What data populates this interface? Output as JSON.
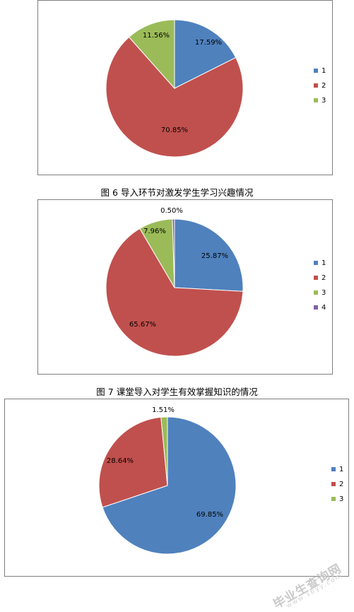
{
  "chart_data": [
    {
      "type": "pie",
      "title": "",
      "categories": [
        "1",
        "2",
        "3"
      ],
      "values": [
        17.59,
        70.85,
        11.56
      ],
      "value_labels": [
        "17.59%",
        "70.85%",
        "11.56%"
      ],
      "colors": [
        "#4f81bd",
        "#c0504d",
        "#9bbb59"
      ],
      "legend": "right",
      "caption": "图 6  导入环节对激发学生学习兴趣情况"
    },
    {
      "type": "pie",
      "title": "",
      "categories": [
        "1",
        "2",
        "3",
        "4"
      ],
      "values": [
        25.87,
        65.67,
        7.96,
        0.5
      ],
      "value_labels": [
        "25.87%",
        "65.67%",
        "7.96%",
        "0.50%"
      ],
      "colors": [
        "#4f81bd",
        "#c0504d",
        "#9bbb59",
        "#8064a2"
      ],
      "legend": "right",
      "caption": "图 7  课堂导入对学生有效掌握知识的情况"
    },
    {
      "type": "pie",
      "title": "",
      "categories": [
        "1",
        "2",
        "3"
      ],
      "values": [
        69.85,
        28.64,
        1.51
      ],
      "value_labels": [
        "69.85%",
        "28.64%",
        "1.51%"
      ],
      "colors": [
        "#4f81bd",
        "#c0504d",
        "#9bbb59"
      ],
      "legend": "right",
      "caption": ""
    }
  ],
  "watermark": {
    "text": "毕业生查询网",
    "url": "www.sbyy.com"
  }
}
